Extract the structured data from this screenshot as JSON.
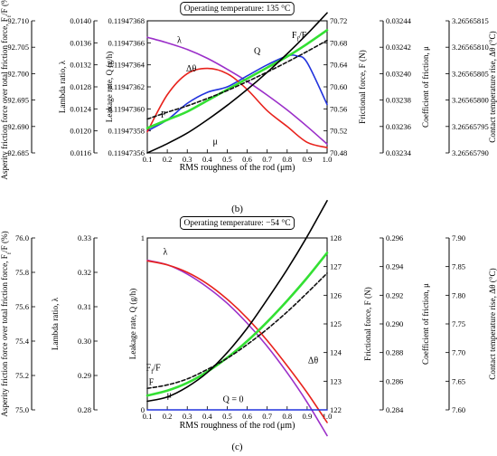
{
  "charts": [
    {
      "panel_label": "(b)",
      "title": "Operating temperature: 135 °C",
      "xlabel": "RMS roughness of the rod (μm)",
      "xlim": [
        0.1,
        1.0
      ],
      "x_ticks": [
        "0.1",
        "0.2",
        "0.3",
        "0.4",
        "0.5",
        "0.6",
        "0.7",
        "0.8",
        "0.9",
        "1.0"
      ],
      "axes": [
        {
          "key": "Ff",
          "label": "Asperity friction force over total friction force, F_f/F (%)",
          "ylim": [
            92.685,
            92.71
          ],
          "ticks": [
            "92.685",
            "92.690",
            "92.695",
            "92.700",
            "92.705",
            "92.710"
          ]
        },
        {
          "key": "lambda",
          "label": "Lambda ratio, λ",
          "ylim": [
            0.0116,
            0.014
          ],
          "ticks": [
            "0.0116",
            "0.0120",
            "0.0124",
            "0.0128",
            "0.0132",
            "0.0136",
            "0.0140"
          ]
        },
        {
          "key": "Q",
          "label": "Leakage rate, Q (g/h)",
          "ylim": [
            0.11947356,
            0.11947368
          ],
          "ticks": [
            "0.11947356",
            "0.11947358",
            "0.11947360",
            "0.11947362",
            "0.11947364",
            "0.11947366",
            "0.11947368"
          ]
        },
        {
          "key": "F",
          "label": "Frictional force, F (N)",
          "ylim": [
            70.48,
            70.72
          ],
          "ticks": [
            "70.48",
            "70.52",
            "70.56",
            "70.60",
            "70.64",
            "70.68",
            "70.72"
          ]
        },
        {
          "key": "mu",
          "label": "Coefficient of friction, μ",
          "ylim": [
            0.03234,
            0.03244
          ],
          "ticks": [
            "0.03234",
            "0.03236",
            "0.03238",
            "0.03240",
            "0.03242",
            "0.03244"
          ]
        },
        {
          "key": "dtheta",
          "label": "Contact temperature rise, Δθ (°C)",
          "ylim": [
            3.2656579,
            3.26565815
          ],
          "ticks": [
            "3.26565790",
            "3.26565795",
            "3.26565800",
            "3.26565805",
            "3.26565810",
            "3.26565815"
          ]
        }
      ],
      "series": [
        {
          "name": "λ",
          "axis": "lambda",
          "color": "#9b2fc9",
          "dashed": false,
          "x": [
            0.1,
            0.2,
            0.3,
            0.4,
            0.5,
            0.6,
            0.7,
            0.8,
            0.9,
            1.0
          ],
          "y": [
            0.0137,
            0.0136,
            0.01348,
            0.01332,
            0.01312,
            0.0129,
            0.01265,
            0.01238,
            0.01208,
            0.01176
          ]
        },
        {
          "name": "Q",
          "axis": "Q",
          "color": "#2233dd",
          "dashed": false,
          "x": [
            0.1,
            0.2,
            0.3,
            0.4,
            0.5,
            0.6,
            0.7,
            0.8,
            0.85,
            0.9,
            1.0
          ],
          "y": [
            0.11947358,
            0.11947359,
            0.119473605,
            0.119473615,
            0.11947362,
            0.11947363,
            0.11947364,
            0.119473648,
            0.119473648,
            0.119473642,
            0.119473604
          ]
        },
        {
          "name": "Δθ",
          "axis": "dtheta",
          "color": "#e8221c",
          "dashed": false,
          "x": [
            0.1,
            0.2,
            0.3,
            0.4,
            0.5,
            0.6,
            0.7,
            0.8,
            0.9,
            1.0
          ],
          "y": [
            3.26565794,
            3.26565801,
            3.26565805,
            3.26565806,
            3.26565805,
            3.26565802,
            3.26565798,
            3.26565795,
            3.26565792,
            3.26565791
          ]
        },
        {
          "name": "F",
          "axis": "F",
          "color": "#33e033",
          "dashed": false,
          "x": [
            0.1,
            0.2,
            0.3,
            0.4,
            0.5,
            0.6,
            0.7,
            0.8,
            0.9,
            1.0
          ],
          "y": [
            70.525,
            70.54,
            70.555,
            70.575,
            70.595,
            70.615,
            70.635,
            70.655,
            70.678,
            70.703
          ]
        },
        {
          "name": "F_f/F",
          "axis": "Ff",
          "color": "#111111",
          "dashed": true,
          "x": [
            0.1,
            0.2,
            0.3,
            0.4,
            0.5,
            0.6,
            0.7,
            0.8,
            0.9,
            1.0
          ],
          "y": [
            92.6914,
            92.6927,
            92.6939,
            92.6953,
            92.6968,
            92.6985,
            92.7003,
            92.7022,
            92.7042,
            92.7063
          ]
        },
        {
          "name": "μ",
          "axis": "mu",
          "color": "#000000",
          "dashed": false,
          "x": [
            0.1,
            0.2,
            0.3,
            0.4,
            0.5,
            0.6,
            0.7,
            0.8,
            0.9,
            1.0
          ],
          "y": [
            0.03234,
            0.032347,
            0.032355,
            0.032365,
            0.032376,
            0.032388,
            0.032401,
            0.032415,
            0.03243,
            0.032446
          ]
        }
      ],
      "labels": [
        {
          "text": "λ",
          "x": 0.26,
          "y": 0.01364,
          "axis": "lambda"
        },
        {
          "text": "Q",
          "x": 0.65,
          "y": 0.119473652,
          "axis": "Q"
        },
        {
          "text": "F_f/F",
          "x": 0.86,
          "y": 70.693,
          "axis": "F"
        },
        {
          "text": "Δθ",
          "x": 0.32,
          "y": 0.119473636,
          "axis": "Q"
        },
        {
          "text": "F",
          "x": 0.18,
          "y": 70.548,
          "axis": "F"
        },
        {
          "text": "μ",
          "x": 0.44,
          "y": 70.5,
          "axis": "F"
        }
      ]
    },
    {
      "panel_label": "(c)",
      "title": "Operating temperature: −54 °C",
      "xlabel": "RMS roughness of the rod (μm)",
      "xlim": [
        0.1,
        1.0
      ],
      "x_ticks": [
        "0.1",
        "0.2",
        "0.3",
        "0.4",
        "0.5",
        "0.6",
        "0.7",
        "0.8",
        "0.9",
        "1.0"
      ],
      "axes": [
        {
          "key": "Ff",
          "label": "Asperity friction force over total friction force, F_f/F (%)",
          "ylim": [
            75.0,
            76.0
          ],
          "ticks": [
            "75.0",
            "75.2",
            "75.4",
            "75.6",
            "75.8",
            "76.0"
          ]
        },
        {
          "key": "lambda",
          "label": "Lambda ratio, λ",
          "ylim": [
            0.28,
            0.33
          ],
          "ticks": [
            "0.28",
            "0.29",
            "0.30",
            "0.31",
            "0.32",
            "0.33"
          ]
        },
        {
          "key": "Q",
          "label": "Leakage rate, Q (g/h)",
          "ylim": [
            0,
            1
          ],
          "ticks": [
            "0",
            "1"
          ]
        },
        {
          "key": "F",
          "label": "Frictional force, F (N)",
          "ylim": [
            122,
            128
          ],
          "ticks": [
            "122",
            "123",
            "124",
            "125",
            "126",
            "127",
            "128"
          ]
        },
        {
          "key": "mu",
          "label": "Coefficient of friction, μ",
          "ylim": [
            0.284,
            0.296
          ],
          "ticks": [
            "0.284",
            "0.286",
            "0.288",
            "0.290",
            "0.292",
            "0.294",
            "0.296"
          ]
        },
        {
          "key": "dtheta",
          "label": "Contact temperature rise, Δθ (°C)",
          "ylim": [
            7.6,
            7.9
          ],
          "ticks": [
            "7.60",
            "7.65",
            "7.70",
            "7.75",
            "7.80",
            "7.85",
            "7.90"
          ]
        }
      ],
      "series": [
        {
          "name": "λ",
          "axis": "lambda",
          "color": "#9b2fc9",
          "dashed": false,
          "x": [
            0.1,
            0.2,
            0.3,
            0.4,
            0.5,
            0.6,
            0.7,
            0.8,
            0.9,
            1.0
          ],
          "y": [
            0.3235,
            0.3222,
            0.3195,
            0.3157,
            0.311,
            0.3052,
            0.2985,
            0.2908,
            0.2822,
            0.2725
          ]
        },
        {
          "name": "Δθ",
          "axis": "dtheta",
          "color": "#e8221c",
          "dashed": false,
          "x": [
            0.1,
            0.2,
            0.3,
            0.4,
            0.5,
            0.6,
            0.7,
            0.8,
            0.9,
            1.0
          ],
          "y": [
            7.86,
            7.853,
            7.84,
            7.82,
            7.793,
            7.76,
            7.721,
            7.677,
            7.63,
            7.578
          ]
        },
        {
          "name": "F",
          "axis": "F",
          "color": "#33e033",
          "dashed": false,
          "x": [
            0.1,
            0.2,
            0.3,
            0.4,
            0.5,
            0.6,
            0.7,
            0.8,
            0.9,
            1.0
          ],
          "y": [
            122.5,
            122.67,
            122.94,
            123.33,
            123.82,
            124.4,
            125.07,
            125.81,
            126.61,
            127.48
          ]
        },
        {
          "name": "F_f/F",
          "axis": "Ff",
          "color": "#111111",
          "dashed": true,
          "x": [
            0.1,
            0.2,
            0.3,
            0.4,
            0.5,
            0.6,
            0.7,
            0.8,
            0.9,
            1.0
          ],
          "y": [
            75.125,
            75.145,
            75.18,
            75.235,
            75.3,
            75.38,
            75.47,
            75.57,
            75.68,
            75.795
          ]
        },
        {
          "name": "μ",
          "axis": "mu",
          "color": "#000000",
          "dashed": false,
          "x": [
            0.1,
            0.2,
            0.3,
            0.4,
            0.5,
            0.6,
            0.7,
            0.8,
            0.9,
            1.0
          ],
          "y": [
            0.2846,
            0.2849,
            0.2856,
            0.2866,
            0.288,
            0.2897,
            0.2917,
            0.2938,
            0.2961,
            0.2986
          ]
        },
        {
          "name": "Q = 0",
          "axis": "Q",
          "color": "#2233dd",
          "dashed": false,
          "x": [
            0.1,
            1.0
          ],
          "y": [
            0,
            0
          ]
        }
      ],
      "labels": [
        {
          "text": "λ",
          "x": 0.19,
          "y": 127.5,
          "axis": "F"
        },
        {
          "text": "F_f/F",
          "x": 0.13,
          "y": 123.45,
          "axis": "F"
        },
        {
          "text": "F",
          "x": 0.12,
          "y": 122.95,
          "axis": "F"
        },
        {
          "text": "μ",
          "x": 0.21,
          "y": 122.5,
          "axis": "F"
        },
        {
          "text": "Q = 0",
          "x": 0.53,
          "y": 122.35,
          "axis": "F"
        },
        {
          "text": "Δθ",
          "x": 0.93,
          "y": 123.7,
          "axis": "F"
        }
      ]
    }
  ]
}
